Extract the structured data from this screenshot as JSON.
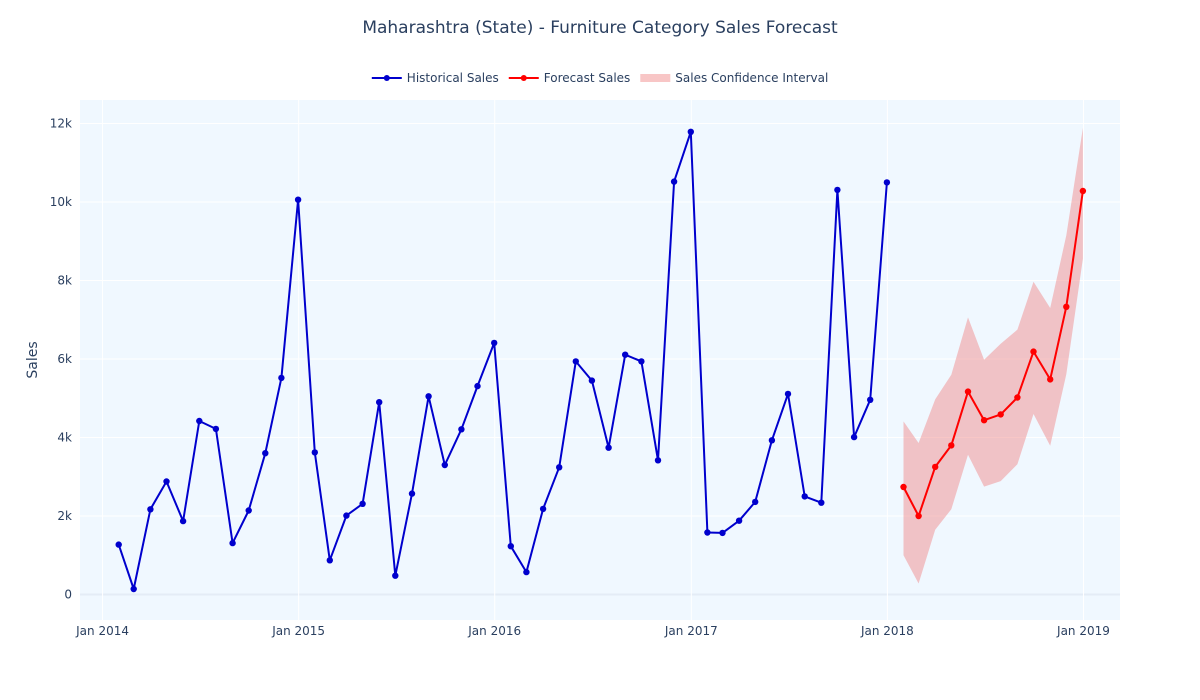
{
  "chart_data": {
    "type": "line",
    "title": "Maharashtra (State) - Furniture Category Sales Forecast",
    "xlabel": "",
    "ylabel": "Sales",
    "xlim": [
      "2013-11-20",
      "2019-03-10"
    ],
    "ylim": [
      -650,
      12600
    ],
    "x_ticks": [
      {
        "date": "2014-01-01",
        "label": "Jan 2014"
      },
      {
        "date": "2015-01-01",
        "label": "Jan 2015"
      },
      {
        "date": "2016-01-01",
        "label": "Jan 2016"
      },
      {
        "date": "2017-01-01",
        "label": "Jan 2017"
      },
      {
        "date": "2018-01-01",
        "label": "Jan 2018"
      },
      {
        "date": "2019-01-01",
        "label": "Jan 2019"
      }
    ],
    "y_ticks": [
      {
        "value": 0,
        "label": "0"
      },
      {
        "value": 2000,
        "label": "2k"
      },
      {
        "value": 4000,
        "label": "4k"
      },
      {
        "value": 6000,
        "label": "6k"
      },
      {
        "value": 8000,
        "label": "8k"
      },
      {
        "value": 10000,
        "label": "10k"
      },
      {
        "value": 12000,
        "label": "12k"
      }
    ],
    "grid": true,
    "legend_position": "top-center",
    "series": [
      {
        "name": "Historical Sales",
        "color": "#0000cd",
        "x": [
          "2014-01-31",
          "2014-02-28",
          "2014-03-31",
          "2014-04-30",
          "2014-05-31",
          "2014-06-30",
          "2014-07-31",
          "2014-08-31",
          "2014-09-30",
          "2014-10-31",
          "2014-11-30",
          "2014-12-31",
          "2015-01-31",
          "2015-02-28",
          "2015-03-31",
          "2015-04-30",
          "2015-05-31",
          "2015-06-30",
          "2015-07-31",
          "2015-08-31",
          "2015-09-30",
          "2015-10-31",
          "2015-11-30",
          "2015-12-31",
          "2016-01-31",
          "2016-02-29",
          "2016-03-31",
          "2016-04-30",
          "2016-05-31",
          "2016-06-30",
          "2016-07-31",
          "2016-08-31",
          "2016-09-30",
          "2016-10-31",
          "2016-11-30",
          "2016-12-31",
          "2017-01-31",
          "2017-02-28",
          "2017-03-31",
          "2017-04-30",
          "2017-05-31",
          "2017-06-30",
          "2017-07-31",
          "2017-08-31",
          "2017-09-30",
          "2017-10-31",
          "2017-11-30",
          "2017-12-31"
        ],
        "values": [
          1270,
          140,
          2170,
          2880,
          1870,
          4420,
          4220,
          1310,
          2140,
          3600,
          5520,
          10060,
          3620,
          870,
          2010,
          2310,
          4900,
          480,
          2570,
          5050,
          3300,
          4210,
          5310,
          6410,
          1230,
          570,
          2180,
          3240,
          5940,
          5450,
          3740,
          6110,
          5940,
          3420,
          10520,
          11790,
          1580,
          1570,
          1880,
          2360,
          3930,
          5110,
          2500,
          2340,
          10310,
          4010,
          4960,
          10500
        ]
      },
      {
        "name": "Forecast Sales",
        "color": "#ff0000",
        "x": [
          "2018-01-31",
          "2018-02-28",
          "2018-03-31",
          "2018-04-30",
          "2018-05-31",
          "2018-06-30",
          "2018-07-31",
          "2018-08-31",
          "2018-09-30",
          "2018-10-31",
          "2018-11-30",
          "2018-12-31"
        ],
        "values": [
          2740,
          2000,
          3250,
          3800,
          5170,
          4440,
          4590,
          5020,
          6190,
          5480,
          7330,
          10280
        ]
      }
    ],
    "confidence_interval": {
      "name": "Sales Confidence Interval",
      "color": "rgba(240,128,128,0.45)",
      "x": [
        "2018-01-31",
        "2018-02-28",
        "2018-03-31",
        "2018-04-30",
        "2018-05-31",
        "2018-06-30",
        "2018-07-31",
        "2018-08-31",
        "2018-09-30",
        "2018-10-31",
        "2018-11-30",
        "2018-12-31"
      ],
      "lower": [
        1000,
        280,
        1650,
        2170,
        3560,
        2750,
        2890,
        3320,
        4600,
        3790,
        5610,
        8560
      ],
      "upper": [
        4410,
        3860,
        4970,
        5600,
        7060,
        5980,
        6390,
        6750,
        7970,
        7300,
        9150,
        11890
      ]
    }
  }
}
